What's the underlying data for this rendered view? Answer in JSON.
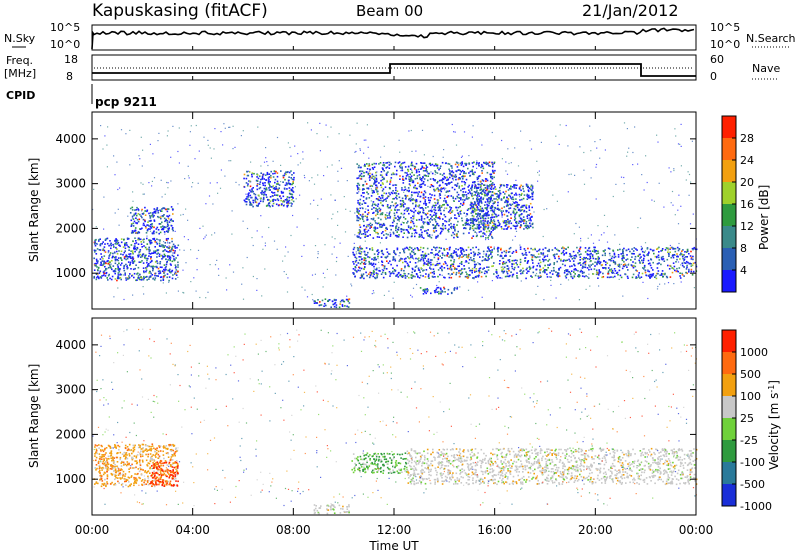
{
  "header": {
    "station": "Kapuskasing (fitACF)",
    "beam": "Beam 00",
    "date": "21/Jan/2012"
  },
  "top_panel": {
    "left_label": "N.Sky",
    "left_ticks": [
      "10^5",
      "10^0"
    ],
    "right_label": "N.Search",
    "right_ticks": [
      "10^5",
      "10^0"
    ]
  },
  "freq_panel": {
    "left_label_1": "Freq.",
    "left_label_2": "[MHz]",
    "left_ticks": [
      "18",
      "8"
    ],
    "right_label": "Nave",
    "right_ticks": [
      "60",
      "0"
    ]
  },
  "cpid": {
    "label": "CPID",
    "value": "pcp 9211"
  },
  "x_axis": {
    "label": "Time UT",
    "ticks": [
      "00:00",
      "04:00",
      "08:00",
      "12:00",
      "16:00",
      "20:00",
      "00:00"
    ]
  },
  "chart_data": [
    {
      "type": "heatmap",
      "quantity": "Power",
      "ylabel": "Slant Range [km]",
      "xlabel": "Time UT",
      "xlim": [
        0,
        24
      ],
      "ylim": [
        200,
        4600
      ],
      "y_ticks": [
        "1000",
        "2000",
        "3000",
        "4000"
      ],
      "colorbar": {
        "label": "Power [dB]",
        "ticks": [
          "4",
          "8",
          "12",
          "16",
          "20",
          "24",
          "28"
        ],
        "colors": [
          "#1a1aff",
          "#2a5fb4",
          "#3a8a8a",
          "#2f9b3f",
          "#9fd12b",
          "#f2a010",
          "#ff6a10",
          "#ff2000"
        ]
      },
      "echo_regions": [
        {
          "t0": 0.05,
          "t1": 3.4,
          "r0": 850,
          "r1": 1800
        },
        {
          "t0": 1.5,
          "t1": 3.2,
          "r0": 1900,
          "r1": 2500
        },
        {
          "t0": 6.0,
          "t1": 8.0,
          "r0": 2500,
          "r1": 3300
        },
        {
          "t0": 8.8,
          "t1": 10.2,
          "r0": 250,
          "r1": 450
        },
        {
          "t0": 10.3,
          "t1": 24.0,
          "r0": 900,
          "r1": 1600
        },
        {
          "t0": 10.5,
          "t1": 16.0,
          "r0": 1800,
          "r1": 3500
        },
        {
          "t0": 13.0,
          "t1": 14.5,
          "r0": 550,
          "r1": 700
        },
        {
          "t0": 15.0,
          "t1": 17.5,
          "r0": 2000,
          "r1": 3000
        }
      ]
    },
    {
      "type": "heatmap",
      "quantity": "Velocity",
      "ylabel": "Slant Range [km]",
      "xlabel": "Time UT",
      "xlim": [
        0,
        24
      ],
      "ylim": [
        200,
        4600
      ],
      "y_ticks": [
        "1000",
        "2000",
        "3000",
        "4000"
      ],
      "colorbar": {
        "label": "Velocity [m s^-1]",
        "ticks": [
          "1000",
          "500",
          "100",
          "25",
          "-25",
          "-100",
          "-500",
          "-1000"
        ],
        "colors": [
          "#1a2fd8",
          "#2a7a9a",
          "#2f9b3f",
          "#6fd13a",
          "#c8c8c8",
          "#f2a010",
          "#ff6a10",
          "#ff2000"
        ]
      },
      "echo_regions": [
        {
          "t0": 0.05,
          "t1": 3.4,
          "r0": 850,
          "r1": 1800,
          "dominant": "orange"
        },
        {
          "t0": 2.3,
          "t1": 3.4,
          "r0": 850,
          "r1": 1400,
          "dominant": "red"
        },
        {
          "t0": 10.3,
          "t1": 12.5,
          "r0": 1150,
          "r1": 1600,
          "dominant": "green"
        },
        {
          "t0": 12.5,
          "t1": 24.0,
          "r0": 900,
          "r1": 1700,
          "dominant": "grey"
        },
        {
          "t0": 8.8,
          "t1": 10.2,
          "r0": 250,
          "r1": 450,
          "dominant": "grey"
        }
      ]
    }
  ]
}
